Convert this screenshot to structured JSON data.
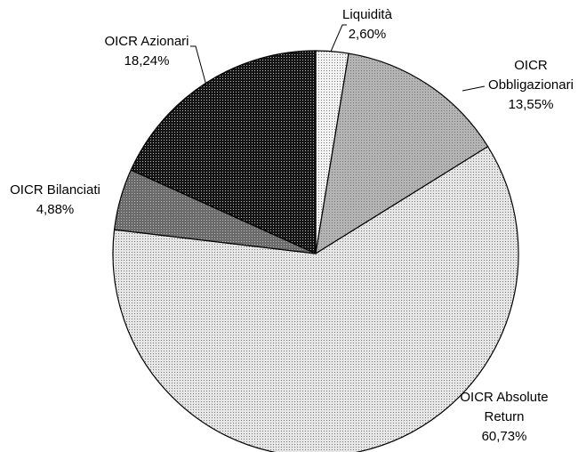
{
  "chart_data": {
    "type": "pie",
    "categories": [
      "Liquidità",
      "OICR Obbligazionari",
      "OICR Absolute Return",
      "OICR Bilanciati",
      "OICR Azionari"
    ],
    "values": [
      2.6,
      13.55,
      60.73,
      4.88,
      18.24
    ],
    "value_labels": [
      "2,60%",
      "13,55%",
      "60,73%",
      "4,88%",
      "18,24%"
    ],
    "colors": [
      "#f4f4f4",
      "#b4b4b4",
      "#e6e6e6",
      "#6a6a6a",
      "#141414"
    ]
  }
}
